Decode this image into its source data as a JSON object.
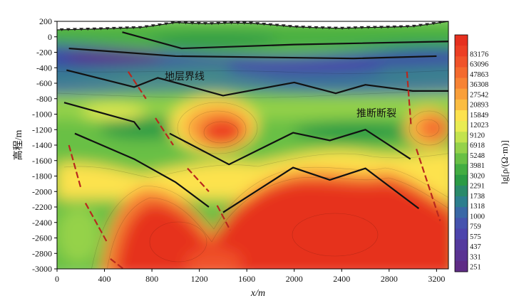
{
  "chart_data": {
    "type": "heatmap",
    "title": "",
    "xlabel": "x/m",
    "ylabel": "高程/m",
    "xlim": [
      0,
      3300
    ],
    "ylim": [
      -3000,
      200
    ],
    "x_ticks": [
      0,
      400,
      800,
      1200,
      1600,
      2000,
      2400,
      2800,
      3200
    ],
    "y_ticks": [
      200,
      0,
      -200,
      -400,
      -600,
      -800,
      -1000,
      -1200,
      -1400,
      -1600,
      -1800,
      -2000,
      -2200,
      -2400,
      -2600,
      -2800,
      -3000
    ],
    "colorbar": {
      "label": "lg[ρ/(Ω·m)]",
      "tick_labels": [
        "83176",
        "63096",
        "47863",
        "36308",
        "27542",
        "20893",
        "15849",
        "12023",
        "9120",
        "6918",
        "5248",
        "3981",
        "3020",
        "2291",
        "1738",
        "1318",
        "1000",
        "759",
        "575",
        "437",
        "331",
        "251"
      ],
      "colors": [
        "#e6301f",
        "#ec3f24",
        "#f0532a",
        "#f46a2e",
        "#f78334",
        "#f99f3a",
        "#fbbd42",
        "#fde24e",
        "#e9ec52",
        "#c3e34e",
        "#95d24a",
        "#69c045",
        "#43ad42",
        "#2b9b45",
        "#2a8a6a",
        "#2d7e8e",
        "#3a68a6",
        "#4553ae",
        "#4c44ac",
        "#543a9e",
        "#5a3392",
        "#5f2c86"
      ]
    },
    "boundaries_label": "地层界线",
    "faults_label": "推断断裂",
    "stratum_boundaries": [
      [
        [
          550,
          60
        ],
        [
          1050,
          -150
        ],
        [
          2000,
          -100
        ],
        [
          3300,
          -60
        ]
      ],
      [
        [
          100,
          -150
        ],
        [
          1000,
          -250
        ],
        [
          2500,
          -280
        ],
        [
          3200,
          -250
        ]
      ],
      [
        [
          80,
          -430
        ],
        [
          650,
          -650
        ],
        [
          850,
          -530
        ],
        [
          1400,
          -760
        ],
        [
          2000,
          -590
        ],
        [
          2350,
          -730
        ],
        [
          2600,
          -620
        ],
        [
          3000,
          -700
        ],
        [
          3300,
          -700
        ]
      ],
      [
        [
          60,
          -850
        ],
        [
          650,
          -1100
        ],
        [
          700,
          -1200
        ]
      ],
      [
        [
          950,
          -1250
        ],
        [
          1450,
          -1650
        ],
        [
          1990,
          -1240
        ],
        [
          2300,
          -1340
        ],
        [
          2600,
          -1200
        ],
        [
          2980,
          -1580
        ]
      ],
      [
        [
          150,
          -1250
        ],
        [
          650,
          -1580
        ],
        [
          1000,
          -1880
        ],
        [
          1280,
          -2200
        ]
      ],
      [
        [
          1400,
          -2270
        ],
        [
          1990,
          -1690
        ],
        [
          2300,
          -1850
        ],
        [
          2600,
          -1700
        ],
        [
          3050,
          -2220
        ]
      ]
    ],
    "faults": [
      [
        [
          600,
          -450
        ],
        [
          750,
          -800
        ]
      ],
      [
        [
          830,
          -1050
        ],
        [
          980,
          -1400
        ]
      ],
      [
        [
          1100,
          -1700
        ],
        [
          1280,
          -2000
        ]
      ],
      [
        [
          1350,
          -2180
        ],
        [
          1460,
          -2500
        ]
      ],
      [
        [
          100,
          -1400
        ],
        [
          200,
          -1950
        ]
      ],
      [
        [
          240,
          -2150
        ],
        [
          420,
          -2650
        ]
      ],
      [
        [
          450,
          -2870
        ],
        [
          560,
          -3000
        ]
      ],
      [
        [
          2950,
          -450
        ],
        [
          2985,
          -1150
        ]
      ],
      [
        [
          3030,
          -1450
        ],
        [
          3230,
          -2380
        ]
      ]
    ],
    "surface_topography": [
      [
        0,
        90
      ],
      [
        150,
        95
      ],
      [
        300,
        100
      ],
      [
        500,
        110
      ],
      [
        700,
        120
      ],
      [
        850,
        150
      ],
      [
        1000,
        185
      ],
      [
        1150,
        175
      ],
      [
        1300,
        170
      ],
      [
        1450,
        180
      ],
      [
        1650,
        175
      ],
      [
        1850,
        150
      ],
      [
        2000,
        130
      ],
      [
        2150,
        120
      ],
      [
        2400,
        110
      ],
      [
        2600,
        120
      ],
      [
        2800,
        125
      ],
      [
        3000,
        135
      ],
      [
        3150,
        165
      ],
      [
        3300,
        200
      ]
    ]
  }
}
